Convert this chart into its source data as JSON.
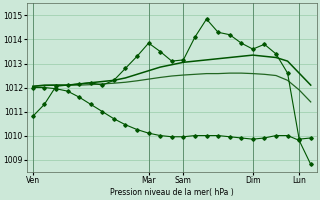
{
  "background_color": "#cce8d8",
  "grid_color": "#99ccaa",
  "line_dark": "#005500",
  "line_mid": "#226622",
  "ylabel": "Pression niveau de la mer( hPa )",
  "ylim": [
    1008.5,
    1015.5
  ],
  "yticks": [
    1009,
    1010,
    1011,
    1012,
    1013,
    1014,
    1015
  ],
  "day_labels": [
    "Ven",
    "Mar",
    "Sam",
    "Dim",
    "Lun"
  ],
  "day_x": [
    0,
    10,
    13,
    19,
    23
  ],
  "n_points": 25,
  "x": [
    0,
    1,
    2,
    3,
    4,
    5,
    6,
    7,
    8,
    9,
    10,
    11,
    12,
    13,
    14,
    15,
    16,
    17,
    18,
    19,
    20,
    21,
    22,
    23,
    24
  ],
  "s1": [
    1010.8,
    1011.3,
    1012.05,
    1012.1,
    1012.15,
    1012.2,
    1012.1,
    1012.3,
    1012.8,
    1013.3,
    1013.85,
    1013.5,
    1013.1,
    1013.15,
    1014.1,
    1014.85,
    1014.3,
    1014.2,
    1013.85,
    1013.6,
    1013.8,
    1013.4,
    1012.6,
    1009.85,
    1009.9
  ],
  "s2": [
    1012.05,
    1012.1,
    1012.1,
    1012.1,
    1012.15,
    1012.2,
    1012.25,
    1012.3,
    1012.4,
    1012.55,
    1012.7,
    1012.85,
    1012.95,
    1013.05,
    1013.1,
    1013.15,
    1013.2,
    1013.25,
    1013.3,
    1013.35,
    1013.3,
    1013.25,
    1013.1,
    1012.6,
    1012.1
  ],
  "s3": [
    1012.05,
    1012.08,
    1012.1,
    1012.1,
    1012.1,
    1012.12,
    1012.15,
    1012.18,
    1012.22,
    1012.28,
    1012.35,
    1012.42,
    1012.48,
    1012.52,
    1012.55,
    1012.58,
    1012.58,
    1012.6,
    1012.6,
    1012.58,
    1012.55,
    1012.5,
    1012.3,
    1011.9,
    1011.4
  ],
  "s4": [
    1012.0,
    1012.0,
    1011.95,
    1011.85,
    1011.6,
    1011.3,
    1011.0,
    1010.7,
    1010.45,
    1010.25,
    1010.1,
    1010.0,
    1009.95,
    1009.95,
    1010.0,
    1010.0,
    1010.0,
    1009.95,
    1009.9,
    1009.85,
    1009.9,
    1010.0,
    1010.0,
    1009.8,
    1008.8
  ]
}
